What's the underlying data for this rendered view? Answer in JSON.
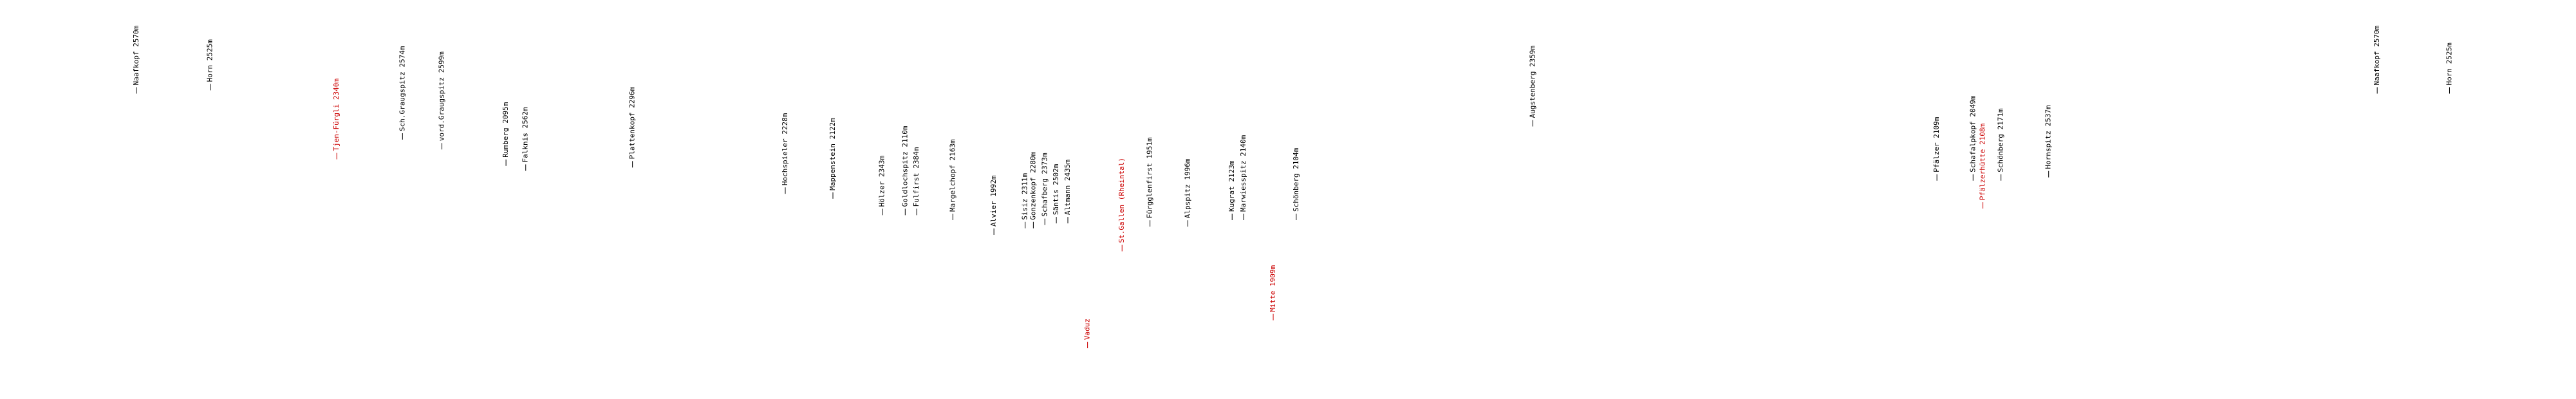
{
  "labels": [
    {
      "text": "Naafkopf 2570m",
      "color": "#000000"
    },
    {
      "text": "Horn 2525m",
      "color": "#000000"
    },
    {
      "text": "Tjen-Fürgli 2340m",
      "color": "#cc0000"
    },
    {
      "text": "Sch.Graugspitz 2574m",
      "color": "#000000"
    },
    {
      "text": "vord.Graugspitz 2599m",
      "color": "#000000"
    },
    {
      "text": "Rumberg 2095m",
      "color": "#000000"
    },
    {
      "text": "Falknis 2562m",
      "color": "#000000"
    },
    {
      "text": "Plattenkopf 2296m",
      "color": "#000000"
    },
    {
      "text": "Hochspieler 2228m",
      "color": "#000000"
    },
    {
      "text": "Mappenstein 2122m",
      "color": "#000000"
    },
    {
      "text": "Hölzer 2343m",
      "color": "#000000"
    },
    {
      "text": "Goldlochspitz 2110m",
      "color": "#000000"
    },
    {
      "text": "Fulfirst 2384m",
      "color": "#000000"
    },
    {
      "text": "Margelchopf 2163m",
      "color": "#000000"
    },
    {
      "text": "Alvier 1992m",
      "color": "#000000"
    },
    {
      "text": "Sisiz 2311m",
      "color": "#000000"
    },
    {
      "text": "Gonzenkopf 2280m",
      "color": "#000000"
    },
    {
      "text": "Schafberg 2373m",
      "color": "#000000"
    },
    {
      "text": "Säntis 2502m",
      "color": "#000000"
    },
    {
      "text": "Altmann 2435m",
      "color": "#000000"
    },
    {
      "text": "Vaduz",
      "color": "#cc0000"
    },
    {
      "text": "St.Gallen (Rheintal)",
      "color": "#cc0000"
    },
    {
      "text": "Fürgglenfirst 1951m",
      "color": "#000000"
    },
    {
      "text": "Alpspitz 1996m",
      "color": "#000000"
    },
    {
      "text": "Kugrat 2123m",
      "color": "#000000"
    },
    {
      "text": "Marwiesspitz 2140m",
      "color": "#000000"
    },
    {
      "text": "Mitte 1909m",
      "color": "#cc0000"
    },
    {
      "text": "Schönberg 2104m",
      "color": "#000000"
    },
    {
      "text": "Augstenberg 2359m",
      "color": "#000000"
    },
    {
      "text": "Pfälzer 2109m",
      "color": "#000000"
    },
    {
      "text": "Schafalpkopf 2049m",
      "color": "#000000"
    },
    {
      "text": "Pfälzerhütte 2108m",
      "color": "#cc0000"
    },
    {
      "text": "Schönberg 2171m",
      "color": "#000000"
    },
    {
      "text": "Hornspitz 2537m",
      "color": "#000000"
    },
    {
      "text": "Naafkopf 2570m",
      "color": "#000000"
    },
    {
      "text": "Horn 2525m",
      "color": "#000000"
    }
  ]
}
